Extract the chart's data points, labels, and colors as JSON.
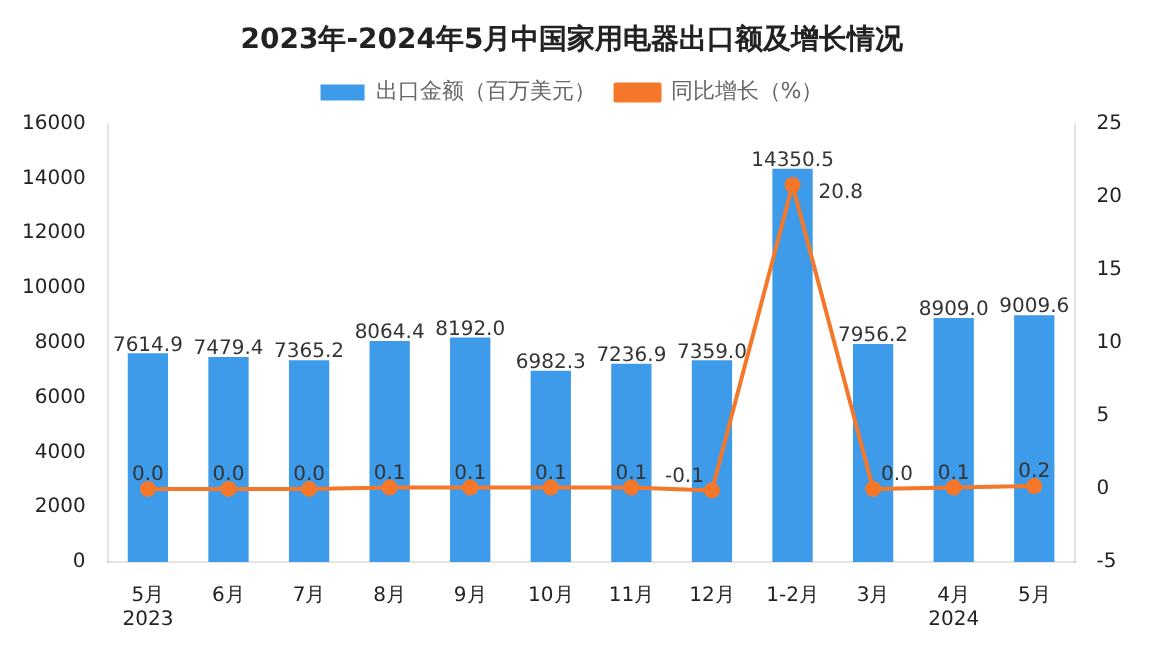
{
  "chart_data": {
    "type": "bar",
    "title": "2023年-2024年5月中国家用电器出口额及增长情况",
    "categories": [
      "5月\n2023",
      "6月",
      "7月",
      "8月",
      "9月",
      "10月",
      "11月",
      "12月",
      "1-2月",
      "3月",
      "4月\n2024",
      "5月"
    ],
    "series": [
      {
        "name": "出口金额（百万美元）",
        "color": "#3d9be9",
        "values": [
          7614.9,
          7479.4,
          7365.2,
          8064.4,
          8192,
          6982.3,
          7236.9,
          7359,
          14350.5,
          7956.2,
          8909,
          9009.6
        ],
        "value_labels": [
          "7614.9",
          "7479.4",
          "7365.2",
          "8064.4",
          "8192.0",
          "6982.3",
          "7236.9",
          "7359.0",
          "14350.5",
          "7956.2",
          "8909.0",
          "9009.6"
        ]
      },
      {
        "name": "同比增长（%）",
        "type": "line",
        "axis": "y2",
        "color": "#f5782a",
        "marker": "circle",
        "values": [
          0,
          0,
          0,
          0.1,
          0.1,
          0.1,
          0.1,
          -0.1,
          20.8,
          0,
          0.1,
          0.2
        ],
        "value_labels": [
          "0.0",
          "0.0",
          "0.0",
          "0.1",
          "0.1",
          "0.1",
          "0.1",
          "-0.1",
          "20.8",
          "0.0",
          "0.1",
          "0.2"
        ]
      }
    ],
    "ylim": [
      0,
      16000
    ],
    "yticks": [
      0,
      2000,
      4000,
      6000,
      8000,
      10000,
      12000,
      14000,
      16000
    ],
    "y2lim": [
      -5,
      25
    ],
    "y2ticks": [
      -5,
      0,
      5,
      10,
      15,
      20,
      25
    ],
    "legend": "top",
    "grid": false
  }
}
